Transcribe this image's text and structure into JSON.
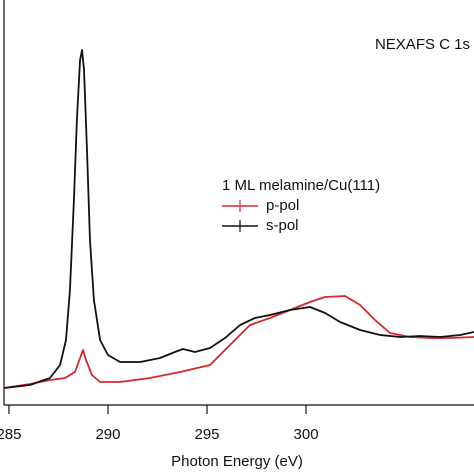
{
  "chart_data": {
    "type": "line",
    "annotation": "NEXAFS C 1s",
    "legend_title": "1 ML melamine/Cu(111)",
    "xlabel": "Photon Energy (eV)",
    "xlim": [
      284.75,
      308.48
    ],
    "ylim": [
      0,
      405
    ],
    "xticks": [
      285,
      290,
      295,
      300
    ],
    "series": [
      {
        "name": "p-pol",
        "color": "#d6282a",
        "x": [
          284.75,
          286.06,
          287.07,
          287.83,
          288.33,
          288.59,
          288.74,
          288.89,
          289.19,
          289.6,
          290.61,
          292.12,
          293.64,
          295.15,
          296.16,
          297.17,
          298.18,
          299.19,
          300.2,
          300.96,
          301.97,
          302.73,
          303.48,
          304.24,
          305.25,
          306.26,
          307.27,
          308.48
        ],
        "values": [
          17,
          21,
          25,
          27,
          33,
          47,
          55,
          45,
          30,
          23,
          23,
          27,
          33,
          40,
          60,
          80,
          87,
          95,
          103,
          108,
          109,
          100,
          85,
          72,
          68,
          67,
          67,
          68
        ]
      },
      {
        "name": "s-pol",
        "color": "#111111",
        "x": [
          284.75,
          286.06,
          287.07,
          287.58,
          287.88,
          288.08,
          288.28,
          288.43,
          288.59,
          288.69,
          288.79,
          288.94,
          289.09,
          289.29,
          289.6,
          290.0,
          290.61,
          291.62,
          292.63,
          293.38,
          293.79,
          294.39,
          295.15,
          295.91,
          296.67,
          297.42,
          298.18,
          299.19,
          300.2,
          300.96,
          301.72,
          302.73,
          303.74,
          304.75,
          305.76,
          306.77,
          307.78,
          308.48
        ],
        "values": [
          17,
          20,
          27,
          40,
          65,
          115,
          205,
          285,
          345,
          355,
          335,
          255,
          165,
          105,
          65,
          50,
          43,
          43,
          47,
          53,
          56,
          53,
          57,
          67,
          80,
          87,
          90,
          95,
          98,
          92,
          83,
          75,
          70,
          68,
          69,
          68,
          70,
          73
        ]
      }
    ]
  }
}
